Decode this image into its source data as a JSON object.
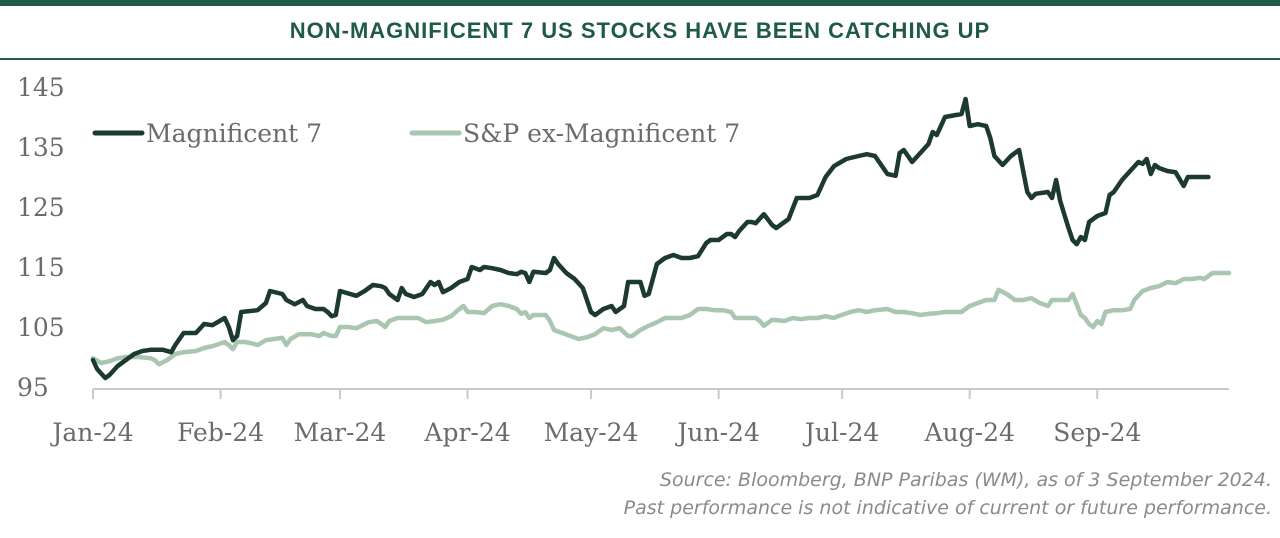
{
  "title": "NON-MAGNIFICENT 7 US STOCKS HAVE BEEN CATCHING UP",
  "source_line1": "Source: Bloomberg, BNP Paribas (WM), as of 3 September 2024.",
  "source_line2": "Past performance is not indicative of current or future performance.",
  "colors": {
    "brand": "#1f5a48",
    "mag7": "#1c3a2f",
    "ex_mag7": "#a9c6b0",
    "axis": "#6b6b6b"
  },
  "chart_data": {
    "type": "line",
    "ylim": [
      95,
      145
    ],
    "yticks": [
      "145",
      "135",
      "125",
      "115",
      "105",
      "95"
    ],
    "ytick_values": [
      145,
      135,
      125,
      115,
      105,
      95
    ],
    "xticks": [
      "Jan-24",
      "Feb-24",
      "Mar-24",
      "Apr-24",
      "May-24",
      "Jun-24",
      "Jul-24",
      "Aug-24",
      "Sep-24"
    ],
    "xtick_days": [
      0,
      31,
      60,
      91,
      121,
      152,
      182,
      213,
      244
    ],
    "x_unit": "days since 2024-01-01",
    "legend_position": "top-left",
    "grid": false,
    "series": [
      {
        "name": "Magnificent 7",
        "color": "#1c3a2f",
        "points": [
          [
            0,
            99.5
          ],
          [
            1,
            98
          ],
          [
            3,
            96.5
          ],
          [
            4,
            97
          ],
          [
            6,
            98.5
          ],
          [
            8,
            99.5
          ],
          [
            10,
            100.5
          ],
          [
            12,
            101
          ],
          [
            14,
            101.2
          ],
          [
            17,
            101.2
          ],
          [
            19,
            100.8
          ],
          [
            20,
            102
          ],
          [
            22,
            104
          ],
          [
            25,
            104
          ],
          [
            27,
            105.5
          ],
          [
            29,
            105.3
          ],
          [
            32,
            106.5
          ],
          [
            33,
            105
          ],
          [
            34,
            102.8
          ],
          [
            35,
            103.5
          ],
          [
            36,
            107.5
          ],
          [
            40,
            107.8
          ],
          [
            42,
            109
          ],
          [
            43,
            111
          ],
          [
            46,
            110.5
          ],
          [
            47,
            109.5
          ],
          [
            49,
            108.8
          ],
          [
            51,
            109.5
          ],
          [
            52,
            108.5
          ],
          [
            54,
            108
          ],
          [
            56,
            108
          ],
          [
            57,
            107.5
          ],
          [
            58,
            106.8
          ],
          [
            59,
            107
          ],
          [
            60,
            111
          ],
          [
            64,
            110.2
          ],
          [
            66,
            111
          ],
          [
            68,
            112
          ],
          [
            70,
            111.8
          ],
          [
            71,
            111.5
          ],
          [
            72,
            110.5
          ],
          [
            74,
            109.5
          ],
          [
            75,
            111.5
          ],
          [
            76,
            110.5
          ],
          [
            78,
            110
          ],
          [
            80,
            110.5
          ],
          [
            82,
            112.5
          ],
          [
            83,
            112
          ],
          [
            84,
            112.5
          ],
          [
            85,
            110.8
          ],
          [
            87,
            111.5
          ],
          [
            89,
            112.5
          ],
          [
            91,
            113
          ],
          [
            92,
            115
          ],
          [
            94,
            114.5
          ],
          [
            95,
            115
          ],
          [
            97,
            114.8
          ],
          [
            99,
            114.5
          ],
          [
            101,
            114
          ],
          [
            103,
            113.8
          ],
          [
            104,
            114.2
          ],
          [
            105,
            114
          ],
          [
            106,
            112.5
          ],
          [
            107,
            114.2
          ],
          [
            110,
            114
          ],
          [
            111,
            114.5
          ],
          [
            112,
            116.5
          ],
          [
            113,
            115.5
          ],
          [
            115,
            114
          ],
          [
            117,
            113
          ],
          [
            119,
            111.5
          ],
          [
            121,
            107.5
          ],
          [
            122,
            107
          ],
          [
            124,
            108
          ],
          [
            126,
            108.5
          ],
          [
            127,
            107.5
          ],
          [
            129,
            108.5
          ],
          [
            130,
            112.5
          ],
          [
            133,
            112.5
          ],
          [
            134,
            110.2
          ],
          [
            135,
            110.5
          ],
          [
            137,
            115.5
          ],
          [
            139,
            116.5
          ],
          [
            141,
            117
          ],
          [
            143,
            116.5
          ],
          [
            145,
            116.5
          ],
          [
            147,
            116.8
          ],
          [
            149,
            119
          ],
          [
            150,
            119.5
          ],
          [
            152,
            119.5
          ],
          [
            154,
            120.5
          ],
          [
            155,
            120.5
          ],
          [
            156,
            120
          ],
          [
            157,
            121
          ],
          [
            159,
            122.5
          ],
          [
            160,
            122.5
          ],
          [
            161,
            122.3
          ],
          [
            163,
            123.8
          ],
          [
            165,
            122
          ],
          [
            166,
            121.5
          ],
          [
            167,
            122
          ],
          [
            169,
            123
          ],
          [
            171,
            126.5
          ],
          [
            172,
            126.5
          ],
          [
            174,
            126.5
          ],
          [
            176,
            127
          ],
          [
            178,
            130
          ],
          [
            180,
            131.8
          ],
          [
            183,
            133
          ],
          [
            186,
            133.5
          ],
          [
            188,
            133.8
          ],
          [
            190,
            133.5
          ],
          [
            193,
            130.5
          ],
          [
            195,
            130.2
          ],
          [
            196,
            134
          ],
          [
            197,
            134.5
          ],
          [
            199,
            132.5
          ],
          [
            201,
            134
          ],
          [
            203,
            135.5
          ],
          [
            204,
            137.5
          ],
          [
            205,
            137
          ],
          [
            207,
            140
          ],
          [
            211,
            140.5
          ],
          [
            212,
            143
          ],
          [
            213,
            138.5
          ],
          [
            215,
            138.8
          ],
          [
            217,
            138.5
          ],
          [
            218,
            136.5
          ],
          [
            219,
            133.5
          ],
          [
            221,
            132
          ],
          [
            223,
            133.5
          ],
          [
            225,
            134.5
          ],
          [
            227,
            127.5
          ],
          [
            228,
            126.5
          ],
          [
            229,
            127.2
          ],
          [
            232,
            127.5
          ],
          [
            233,
            126.5
          ],
          [
            234,
            129.5
          ],
          [
            235,
            126
          ],
          [
            237,
            121.5
          ],
          [
            238,
            119.5
          ],
          [
            239,
            118.8
          ],
          [
            240,
            120
          ],
          [
            241,
            119.5
          ],
          [
            242,
            122.5
          ],
          [
            244,
            123.5
          ],
          [
            246,
            124
          ],
          [
            247,
            127
          ],
          [
            248,
            127.5
          ],
          [
            250,
            129.5
          ],
          [
            252,
            131
          ],
          [
            254,
            132.5
          ],
          [
            255,
            132.2
          ],
          [
            256,
            133
          ],
          [
            257,
            130.5
          ],
          [
            258,
            132
          ],
          [
            259,
            131.5
          ],
          [
            261,
            131
          ],
          [
            263,
            130.8
          ],
          [
            265,
            128.5
          ],
          [
            266,
            130
          ],
          [
            269,
            130
          ],
          [
            271,
            130
          ]
        ]
      },
      {
        "name": "S&P ex-Magnificent 7",
        "color": "#a9c6b0",
        "points": [
          [
            0,
            99.8
          ],
          [
            2,
            99
          ],
          [
            4,
            99.3
          ],
          [
            6,
            99.8
          ],
          [
            8,
            100
          ],
          [
            11,
            100
          ],
          [
            14,
            99.8
          ],
          [
            15,
            99.5
          ],
          [
            16,
            98.8
          ],
          [
            18,
            99.5
          ],
          [
            20,
            100.5
          ],
          [
            22,
            100.8
          ],
          [
            25,
            101
          ],
          [
            27,
            101.5
          ],
          [
            29,
            101.8
          ],
          [
            32,
            102.5
          ],
          [
            33,
            102
          ],
          [
            34,
            101.3
          ],
          [
            35,
            102.5
          ],
          [
            37,
            102.5
          ],
          [
            39,
            102.2
          ],
          [
            40,
            102
          ],
          [
            42,
            102.8
          ],
          [
            44,
            103
          ],
          [
            46,
            103.2
          ],
          [
            47,
            102
          ],
          [
            48,
            103
          ],
          [
            50,
            103.8
          ],
          [
            53,
            103.8
          ],
          [
            55,
            103.5
          ],
          [
            56,
            104
          ],
          [
            58,
            103.5
          ],
          [
            59,
            103.5
          ],
          [
            60,
            105
          ],
          [
            62,
            105
          ],
          [
            64,
            104.8
          ],
          [
            67,
            105.8
          ],
          [
            69,
            106
          ],
          [
            71,
            105
          ],
          [
            72,
            106
          ],
          [
            74,
            106.5
          ],
          [
            76,
            106.5
          ],
          [
            79,
            106.5
          ],
          [
            81,
            105.8
          ],
          [
            83,
            106
          ],
          [
            85,
            106.2
          ],
          [
            87,
            106.8
          ],
          [
            89,
            108
          ],
          [
            90,
            108.5
          ],
          [
            91,
            107.5
          ],
          [
            93,
            107.5
          ],
          [
            95,
            107.3
          ],
          [
            97,
            108.5
          ],
          [
            99,
            108.8
          ],
          [
            101,
            108.5
          ],
          [
            103,
            108
          ],
          [
            104,
            107.2
          ],
          [
            105,
            107.5
          ],
          [
            106,
            106.5
          ],
          [
            107,
            107
          ],
          [
            110,
            107
          ],
          [
            111,
            106
          ],
          [
            112,
            104.5
          ],
          [
            114,
            104
          ],
          [
            116,
            103.5
          ],
          [
            118,
            103
          ],
          [
            120,
            103.3
          ],
          [
            122,
            103.8
          ],
          [
            124,
            104.8
          ],
          [
            126,
            104.5
          ],
          [
            128,
            104.8
          ],
          [
            130,
            103.5
          ],
          [
            131,
            103.5
          ],
          [
            133,
            104.5
          ],
          [
            135,
            105.2
          ],
          [
            137,
            105.8
          ],
          [
            139,
            106.5
          ],
          [
            141,
            106.5
          ],
          [
            143,
            106.5
          ],
          [
            145,
            107
          ],
          [
            147,
            108
          ],
          [
            149,
            108
          ],
          [
            151,
            107.8
          ],
          [
            153,
            107.8
          ],
          [
            155,
            107.5
          ],
          [
            156,
            106.5
          ],
          [
            157,
            106.5
          ],
          [
            159,
            106.5
          ],
          [
            161,
            106.5
          ],
          [
            162,
            106
          ],
          [
            163,
            105.2
          ],
          [
            165,
            106.2
          ],
          [
            168,
            106
          ],
          [
            170,
            106.5
          ],
          [
            172,
            106.3
          ],
          [
            174,
            106.5
          ],
          [
            176,
            106.5
          ],
          [
            178,
            106.8
          ],
          [
            180,
            106.5
          ],
          [
            181,
            106.8
          ],
          [
            184,
            107.5
          ],
          [
            186,
            107.8
          ],
          [
            188,
            107.5
          ],
          [
            190,
            107.8
          ],
          [
            193,
            108
          ],
          [
            195,
            107.5
          ],
          [
            197,
            107.5
          ],
          [
            199,
            107.3
          ],
          [
            201,
            107
          ],
          [
            203,
            107.2
          ],
          [
            205,
            107.3
          ],
          [
            207,
            107.5
          ],
          [
            209,
            107.5
          ],
          [
            211,
            107.5
          ],
          [
            213,
            108.5
          ],
          [
            215,
            109
          ],
          [
            217,
            109.5
          ],
          [
            219,
            109.5
          ],
          [
            220,
            111.2
          ],
          [
            222,
            110.5
          ],
          [
            224,
            109.5
          ],
          [
            226,
            109.5
          ],
          [
            228,
            109.8
          ],
          [
            230,
            109
          ],
          [
            232,
            108.5
          ],
          [
            233,
            109.5
          ],
          [
            236,
            109.5
          ],
          [
            237,
            109.5
          ],
          [
            238,
            110.5
          ],
          [
            239,
            108.8
          ],
          [
            240,
            107
          ],
          [
            241,
            106.5
          ],
          [
            242,
            105.5
          ],
          [
            243,
            105
          ],
          [
            244,
            106
          ],
          [
            245,
            105.5
          ],
          [
            246,
            107.5
          ],
          [
            248,
            107.8
          ],
          [
            250,
            107.8
          ],
          [
            252,
            108
          ],
          [
            253,
            109.5
          ],
          [
            255,
            111
          ],
          [
            257,
            111.5
          ],
          [
            259,
            111.8
          ],
          [
            261,
            112.5
          ],
          [
            263,
            112.3
          ],
          [
            265,
            113
          ],
          [
            267,
            113
          ],
          [
            269,
            113.2
          ],
          [
            270,
            113
          ],
          [
            272,
            114
          ],
          [
            274,
            114
          ],
          [
            276,
            114
          ]
        ]
      }
    ]
  }
}
